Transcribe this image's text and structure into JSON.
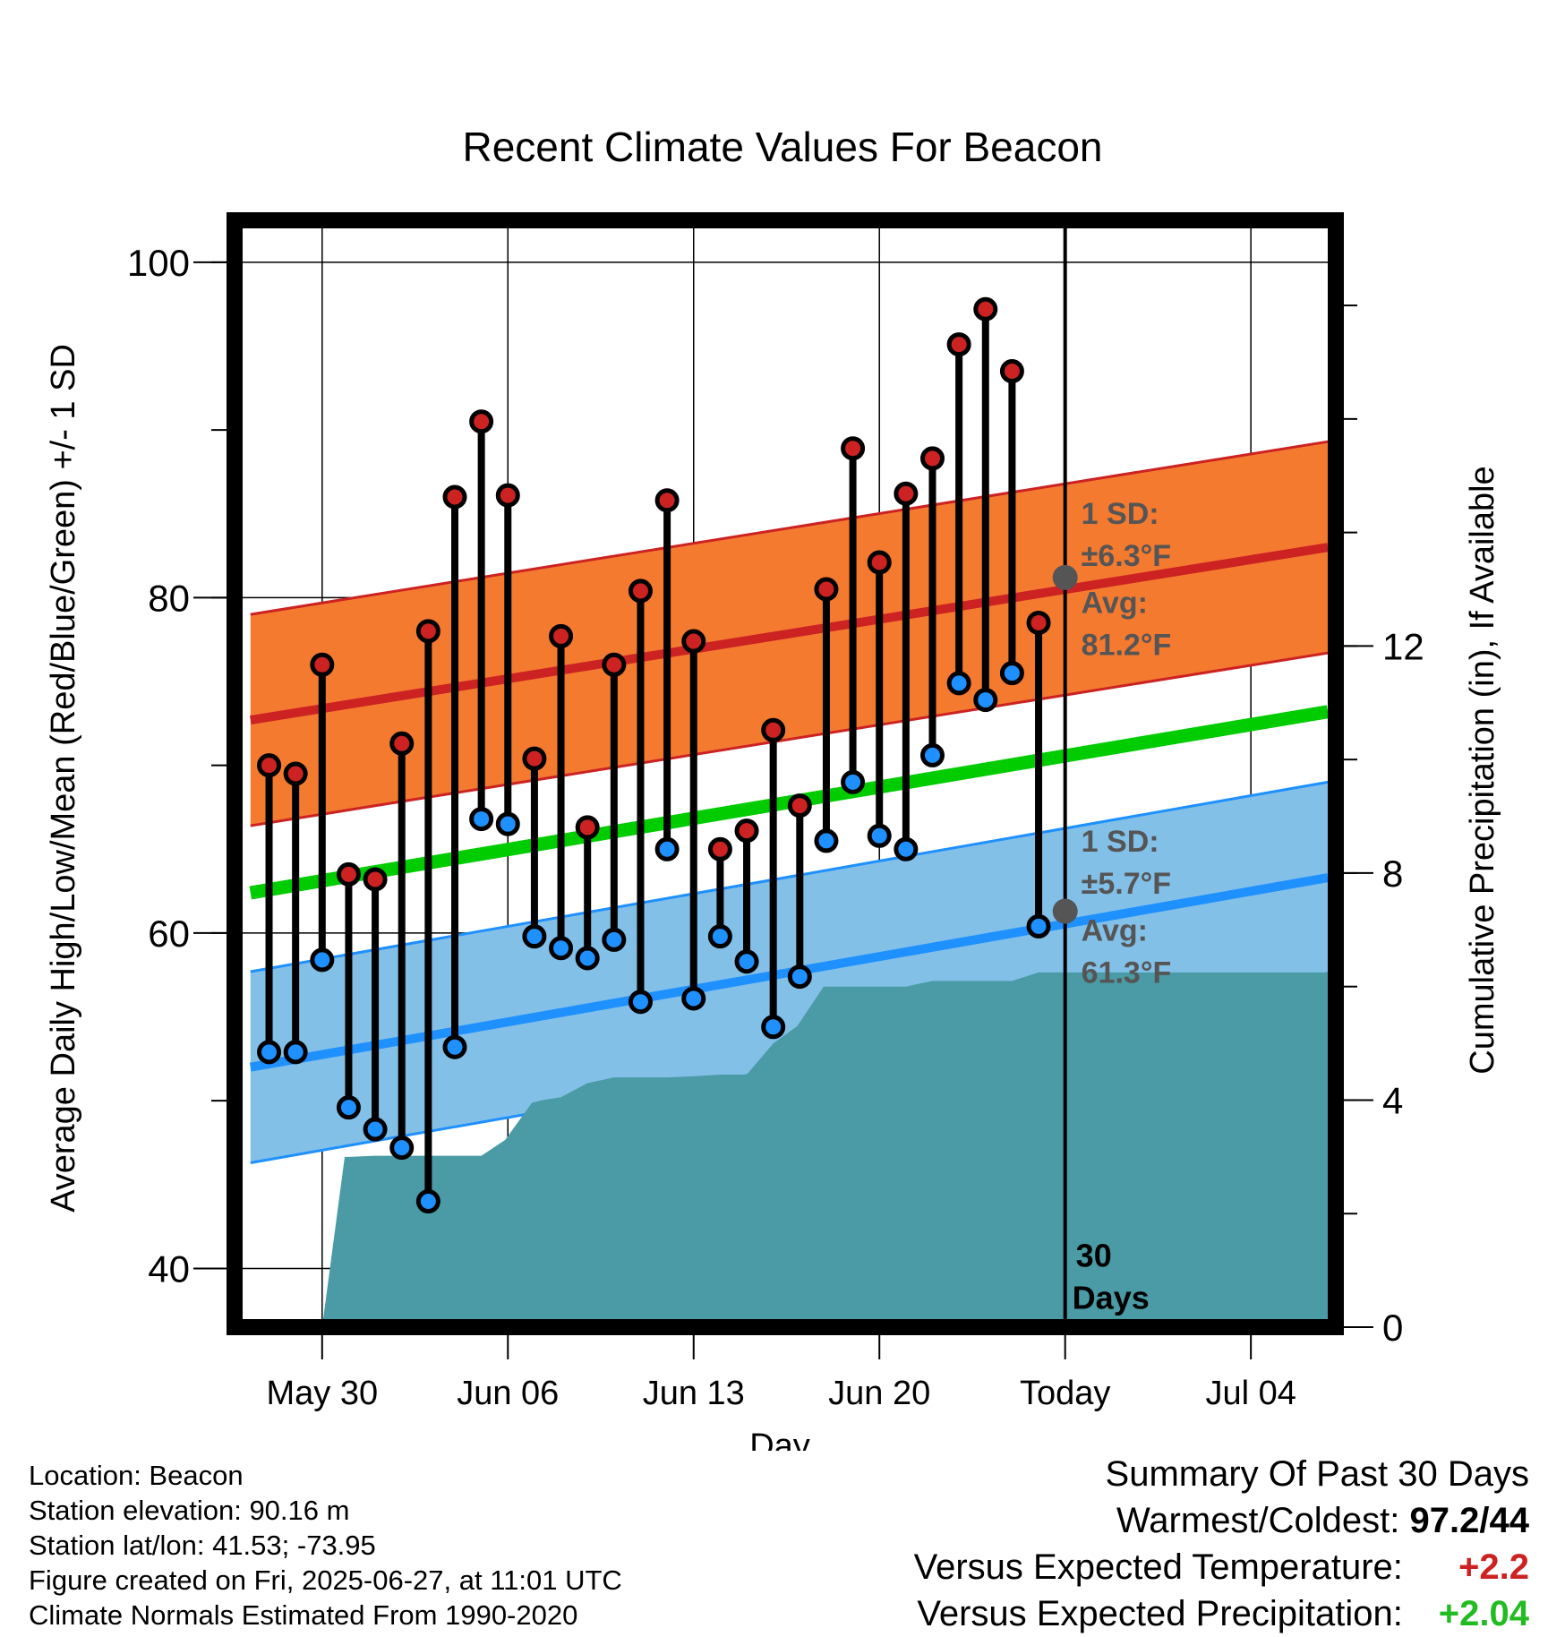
{
  "chart_data": {
    "type": "line",
    "title": "Recent Climate Values For Beacon",
    "xlabel": "Day",
    "ylabel_left": "Average Daily High/Low/Mean (Red/Blue/Green) +/- 1 SD",
    "ylabel_right": "Cumulative Precipitation (in), If Available",
    "ylim_left": [
      36.5,
      102.5
    ],
    "ylim_right": [
      0,
      19.5
    ],
    "yticks_left": [
      40,
      60,
      80,
      100
    ],
    "yticks_right": [
      0,
      4,
      8,
      12
    ],
    "xlim": [
      -3.3,
      38.2
    ],
    "xticks": [
      {
        "day": 0,
        "label": "May 30"
      },
      {
        "day": 7,
        "label": "Jun 06"
      },
      {
        "day": 14,
        "label": "Jun 13"
      },
      {
        "day": 21,
        "label": "Jun 20"
      },
      {
        "day": 28,
        "label": "Today"
      },
      {
        "day": 35,
        "label": "Jul 04"
      }
    ],
    "grid": true,
    "normal_high": {
      "x": [
        -2.7,
        37.9
      ],
      "y": [
        72.7,
        83.0
      ],
      "sd": 6.3,
      "color": "#cc2222",
      "band_color": "#f47a30"
    },
    "normal_low": {
      "x": [
        -2.7,
        37.9
      ],
      "y": [
        52.0,
        63.3
      ],
      "sd": 5.7,
      "color": "#1e90ff",
      "band_color": "#82c0e8"
    },
    "normal_mean": {
      "x": [
        -2.7,
        37.9
      ],
      "y": [
        62.4,
        73.2
      ],
      "color": "#00cc00"
    },
    "observed": {
      "day": [
        -2,
        -1,
        0,
        1,
        2,
        3,
        4,
        5,
        6,
        7,
        8,
        9,
        10,
        11,
        12,
        13,
        14,
        15,
        16,
        17,
        18,
        19,
        20,
        21,
        22,
        23,
        24,
        25,
        26,
        27
      ],
      "high": [
        70,
        69.5,
        76,
        63.5,
        63.2,
        71.3,
        78,
        86,
        90.5,
        86.1,
        70.4,
        77.7,
        66.3,
        76,
        80.4,
        85.8,
        77.4,
        65,
        66.1,
        72.1,
        67.6,
        80.5,
        88.9,
        82.1,
        86.2,
        88.3,
        95.1,
        97.2,
        93.5,
        78.5
      ],
      "low": [
        52.9,
        52.9,
        58.4,
        49.6,
        48.3,
        47.2,
        44,
        53.2,
        66.8,
        66.5,
        59.8,
        59.1,
        58.5,
        59.6,
        55.9,
        65,
        56.1,
        59.8,
        58.3,
        54.4,
        57.4,
        65.5,
        69,
        65.8,
        65,
        70.6,
        74.9,
        73.9,
        75.5,
        60.4
      ],
      "high_color": "#cc2222",
      "low_color": "#1e90ff"
    },
    "precip_cumulative": {
      "day": [
        0,
        0.85,
        1,
        2,
        3,
        5,
        6,
        6.9,
        7.9,
        8.3,
        9,
        10,
        11,
        12,
        13,
        14,
        15,
        16,
        17,
        17.9,
        18.9,
        19,
        20,
        21,
        22,
        23,
        24,
        25,
        26,
        27,
        28,
        29,
        30,
        31,
        32,
        33,
        34,
        35,
        36,
        37,
        37.9
      ],
      "value": [
        0,
        3.0,
        3.0,
        3.02,
        3.02,
        3.02,
        3.02,
        3.3,
        3.95,
        4.0,
        4.05,
        4.3,
        4.4,
        4.4,
        4.4,
        4.42,
        4.45,
        4.45,
        5.0,
        5.3,
        6.0,
        6.0,
        6.0,
        6.0,
        6.0,
        6.1,
        6.1,
        6.1,
        6.1,
        6.25,
        6.25,
        6.25,
        6.25,
        6.25,
        6.25,
        6.25,
        6.25,
        6.25,
        6.25,
        6.25,
        6.25
      ],
      "color": "#4a9ba5"
    },
    "today_day": 28,
    "annotations": {
      "high_sd_label": "1 SD:",
      "high_sd_value": "±6.3°F",
      "high_avg_label": "Avg:",
      "high_avg_value": "81.2°F",
      "high_avg": 81.2,
      "low_sd_label": "1 SD:",
      "low_sd_value": "±5.7°F",
      "low_avg_label": "Avg:",
      "low_avg_value": "61.3°F",
      "low_avg": 61.3,
      "period_number": "30",
      "period_unit": "Days"
    }
  },
  "footer": {
    "location": "Location: Beacon",
    "elevation": "Station elevation: 90.16 m",
    "latlon": "Station lat/lon: 41.53; -73.95",
    "created": "Figure created on Fri, 2025-06-27, at 11:01 UTC",
    "normals": "Climate Normals Estimated From 1990-2020"
  },
  "summary": {
    "title": "Summary Of Past 30 Days",
    "warmest_label": "Warmest/Coldest:",
    "warmest_value": "97.2/44",
    "temp_label": "Versus Expected Temperature:",
    "temp_value": "+2.2",
    "temp_color": "#cc2222",
    "precip_label": "Versus Expected Precipitation:",
    "precip_value": "+2.04",
    "precip_color": "#22bb22"
  }
}
